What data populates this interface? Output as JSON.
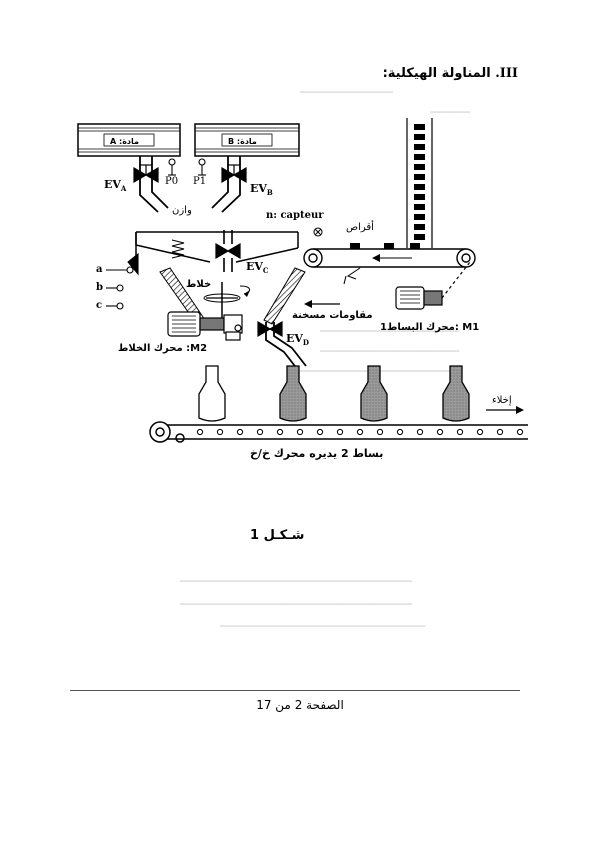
{
  "heading": {
    "number": "III.",
    "title": "المناولة الهيكلية:"
  },
  "figure": {
    "tank_a": "مادة: A",
    "tank_b": "مادة: B",
    "p0": "P0",
    "p1": "P1",
    "weigher": "وازن",
    "sensor": "n: capteur",
    "tablets": "أقراص",
    "mixer": "خلاط",
    "heaters": "مقاومات مسخنة",
    "m1_label": "M1 :محرك البساط1",
    "m2_label": "M2: محرك الخلاط",
    "sensor_a": "a",
    "sensor_b": "b",
    "sensor_c": "c",
    "evacuation": "إخلاء",
    "conveyor2": "بساط 2 يديره محرك خ/خ",
    "ev_a": {
      "base": "EV",
      "sub": "A"
    },
    "ev_b": {
      "base": "EV",
      "sub": "B"
    },
    "ev_c": {
      "base": "EV",
      "sub": "C"
    },
    "ev_d": {
      "base": "EV",
      "sub": "D"
    }
  },
  "caption": "شـكـل 1",
  "footer": {
    "text": "الصفحة 2 من 17"
  }
}
